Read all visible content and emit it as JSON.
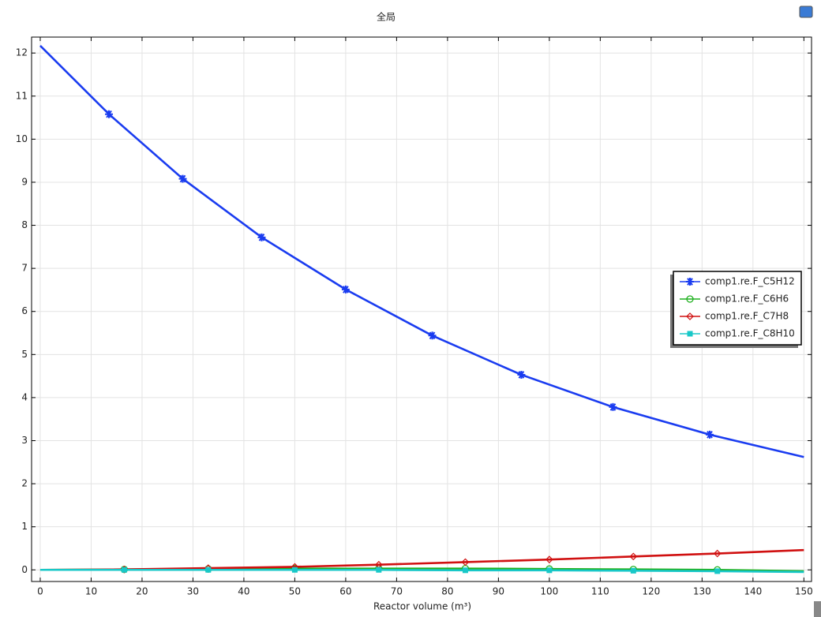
{
  "chart_data": {
    "type": "line",
    "title": "全局",
    "x_label": "Reactor volume (m³)",
    "xlim": [
      -1.7,
      151.5
    ],
    "ylim": [
      -0.27,
      12.37
    ],
    "xticks": [
      0,
      10,
      20,
      30,
      40,
      50,
      60,
      70,
      80,
      90,
      100,
      110,
      120,
      130,
      140,
      150
    ],
    "yticks": [
      0,
      1,
      2,
      3,
      4,
      5,
      6,
      7,
      8,
      9,
      10,
      11,
      12
    ],
    "grid": true,
    "legend": "right",
    "series": [
      {
        "name": "comp1.re.F_C5H12",
        "color": "#1a3cf0",
        "marker": "star",
        "x": [
          0,
          13.5,
          28,
          43.5,
          60,
          77,
          94.5,
          112.5,
          131.5,
          150
        ],
        "values": [
          12.17,
          10.58,
          9.08,
          7.72,
          6.51,
          5.44,
          4.53,
          3.78,
          3.14,
          2.62
        ]
      },
      {
        "name": "comp1.re.F_C6H6",
        "color": "#1fb01f",
        "marker": "circle",
        "x": [
          0,
          16.5,
          33,
          50,
          66.5,
          83.5,
          100,
          116.5,
          133,
          150
        ],
        "values": [
          0,
          0.01,
          0.02,
          0.03,
          0.03,
          0.03,
          0.02,
          0.01,
          0,
          -0.03
        ]
      },
      {
        "name": "comp1.re.F_C7H8",
        "color": "#d01010",
        "marker": "diamond",
        "x": [
          0,
          16.5,
          33,
          50,
          66.5,
          83.5,
          100,
          116.5,
          133,
          150
        ],
        "values": [
          0,
          0.01,
          0.04,
          0.07,
          0.12,
          0.18,
          0.24,
          0.31,
          0.38,
          0.46
        ]
      },
      {
        "name": "comp1.re.F_C8H10",
        "color": "#18c8c8",
        "marker": "square",
        "x": [
          0,
          16.5,
          33,
          50,
          66.5,
          83.5,
          100,
          116.5,
          133,
          150
        ],
        "values": [
          0,
          0,
          0,
          0,
          0,
          -0.01,
          -0.01,
          -0.02,
          -0.03,
          -0.05
        ]
      }
    ]
  }
}
